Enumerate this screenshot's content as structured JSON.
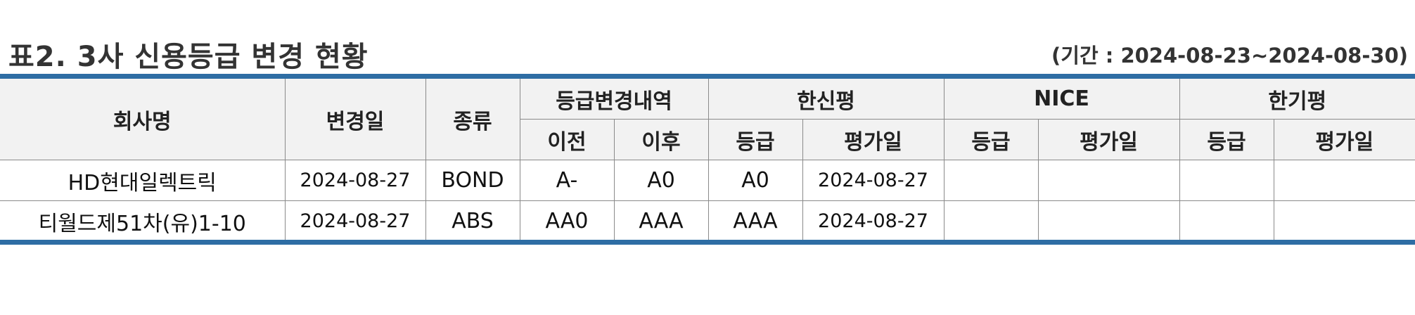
{
  "title": "표2. 3사 신용등급 변경 현황",
  "period": "(기간 : 2024-08-23~2024-08-30)",
  "colors": {
    "accent_rule": "#2e6da4",
    "header_bg": "#f2f2f2",
    "grid_line": "#8a8a8a"
  },
  "table": {
    "headers": {
      "company": "회사명",
      "change_date": "변경일",
      "type": "종류",
      "change_detail": "등급변경내역",
      "before": "이전",
      "after": "이후",
      "kis": "한신평",
      "nice": "NICE",
      "kr": "한기평",
      "grade": "등급",
      "eval_date": "평가일"
    },
    "rows": [
      {
        "company": "HD현대일렉트릭",
        "change_date": "2024-08-27",
        "type": "BOND",
        "before": "A-",
        "after": "A0",
        "kis_grade": "A0",
        "kis_date": "2024-08-27",
        "nice_grade": "",
        "nice_date": "",
        "kr_grade": "",
        "kr_date": ""
      },
      {
        "company": "티월드제51차(유)1-10",
        "change_date": "2024-08-27",
        "type": "ABS",
        "before": "AA0",
        "after": "AAA",
        "kis_grade": "AAA",
        "kis_date": "2024-08-27",
        "nice_grade": "",
        "nice_date": "",
        "kr_grade": "",
        "kr_date": ""
      }
    ]
  }
}
